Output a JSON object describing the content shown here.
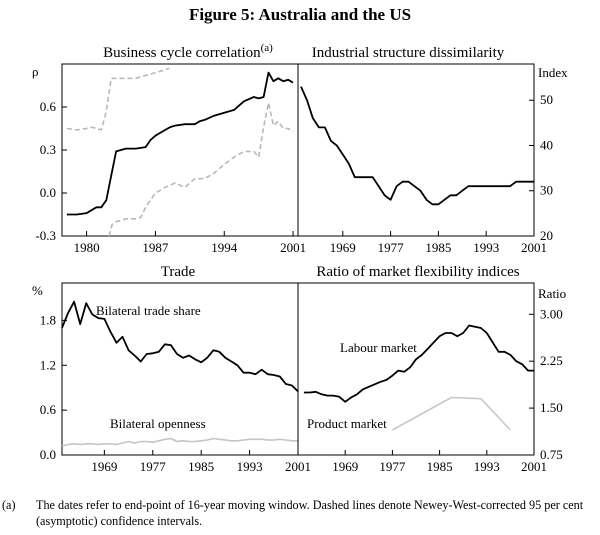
{
  "figure": {
    "title": "Figure 5: Australia and the US",
    "footnote_label": "(a)",
    "footnote_text": "The dates refer to end-point of 16-year moving window. Dashed lines denote Newey-West-corrected 95 per cent (asymptotic) confidence intervals."
  },
  "chart_data": [
    {
      "type": "line",
      "title": "Business cycle correlation",
      "title_superscript": "(a)",
      "ylabel": "ρ",
      "ylim": [
        -0.3,
        0.9
      ],
      "yticks": [
        -0.3,
        0.0,
        0.3,
        0.6
      ],
      "ytick_labels": [
        "-0.3",
        "0.0",
        "0.3",
        "0.6"
      ],
      "xlim": [
        1977.5,
        2001.5
      ],
      "xticks": [
        1980,
        1987,
        1994,
        2001
      ],
      "xtick_labels": [
        "1980",
        "1987",
        "1994",
        "2001"
      ],
      "series": [
        {
          "role": "estimate",
          "color": "#000000",
          "style": "solid",
          "x": [
            1978,
            1979,
            1980,
            1980.5,
            1981,
            1981.5,
            1982,
            1982.5,
            1983,
            1984,
            1985,
            1986,
            1986.5,
            1987,
            1988,
            1988.5,
            1989,
            1990,
            1991,
            1991.5,
            1992,
            1993,
            1994,
            1995,
            1996,
            1997,
            1997.5,
            1998,
            1998.5,
            1999,
            1999.5,
            2000,
            2000.5,
            2001
          ],
          "y": [
            -0.15,
            -0.15,
            -0.14,
            -0.12,
            -0.1,
            -0.1,
            -0.05,
            0.12,
            0.29,
            0.31,
            0.31,
            0.32,
            0.37,
            0.4,
            0.44,
            0.46,
            0.47,
            0.48,
            0.48,
            0.5,
            0.51,
            0.54,
            0.56,
            0.58,
            0.64,
            0.67,
            0.66,
            0.67,
            0.84,
            0.78,
            0.8,
            0.78,
            0.79,
            0.77
          ]
        },
        {
          "role": "upper 95% bound",
          "color": "#b8b8b8",
          "style": "dashed",
          "x": [
            1978,
            1979,
            1980,
            1980.5,
            1981,
            1981.5,
            1982,
            1982.5,
            1983,
            1984,
            1985,
            1986,
            1987,
            1988,
            1988.4
          ],
          "y": [
            0.45,
            0.44,
            0.45,
            0.46,
            0.45,
            0.44,
            0.57,
            0.8,
            0.8,
            0.8,
            0.8,
            0.82,
            0.84,
            0.86,
            0.87
          ]
        },
        {
          "role": "lower 95% bound",
          "color": "#b8b8b8",
          "style": "dashed",
          "x": [
            1982.3,
            1982.6,
            1983,
            1984,
            1985,
            1985.5,
            1986,
            1987,
            1988,
            1989,
            1990,
            1991,
            1992,
            1993,
            1994,
            1995,
            1996,
            1997,
            1997.5,
            1998,
            1998.5,
            1999,
            1999.5,
            2000,
            2000.5,
            2001
          ],
          "y": [
            -0.3,
            -0.22,
            -0.2,
            -0.18,
            -0.18,
            -0.17,
            -0.1,
            0.0,
            0.04,
            0.07,
            0.04,
            0.1,
            0.1,
            0.14,
            0.2,
            0.25,
            0.29,
            0.29,
            0.25,
            0.46,
            0.63,
            0.47,
            0.5,
            0.45,
            0.45,
            0.43
          ]
        }
      ]
    },
    {
      "type": "line",
      "title": "Industrial structure dissimilarity",
      "ylabel": "Index",
      "ylim": [
        20,
        58
      ],
      "yticks": [
        20,
        30,
        40,
        50
      ],
      "ytick_labels": [
        "20",
        "30",
        "40",
        "50"
      ],
      "xlim": [
        1961.5,
        2001
      ],
      "xticks": [
        1969,
        1977,
        1985,
        1993,
        2001
      ],
      "xtick_labels": [
        "1969",
        "1977",
        "1985",
        "1993",
        "2001"
      ],
      "series": [
        {
          "role": "index",
          "color": "#000000",
          "style": "solid",
          "x": [
            1962,
            1963,
            1964,
            1965,
            1966,
            1967,
            1968,
            1969,
            1970,
            1971,
            1972,
            1973,
            1974,
            1975,
            1976,
            1977,
            1978,
            1979,
            1980,
            1981,
            1982,
            1983,
            1984,
            1985,
            1986,
            1987,
            1988,
            1989,
            1990,
            1991,
            1992,
            1993,
            1994,
            1995,
            1996,
            1997,
            1998,
            1999,
            2000,
            2001
          ],
          "y": [
            53,
            50,
            46,
            44,
            44,
            41,
            40,
            38,
            36,
            33,
            33,
            33,
            33,
            31,
            29,
            28,
            31,
            32,
            32,
            31,
            30,
            28,
            27,
            27,
            28,
            29,
            29,
            30,
            31,
            31,
            31,
            31,
            31,
            31,
            31,
            31,
            32,
            32,
            32,
            32
          ]
        }
      ]
    },
    {
      "type": "line",
      "title": "Trade",
      "ylabel": "%",
      "ylim": [
        0,
        2.3
      ],
      "yticks": [
        0.0,
        0.6,
        1.2,
        1.8
      ],
      "ytick_labels": [
        "0.0",
        "0.6",
        "1.2",
        "1.8"
      ],
      "xlim": [
        1962,
        2001
      ],
      "xticks": [
        1969,
        1977,
        1985,
        1993,
        2001
      ],
      "xtick_labels": [
        "1969",
        "1977",
        "1985",
        "1993",
        "2001"
      ],
      "series": [
        {
          "name": "Bilateral trade share",
          "color": "#000000",
          "style": "solid",
          "x": [
            1962,
            1963,
            1964,
            1965,
            1966,
            1967,
            1968,
            1969,
            1970,
            1971,
            1972,
            1973,
            1974,
            1975,
            1976,
            1977,
            1978,
            1979,
            1980,
            1981,
            1982,
            1983,
            1984,
            1985,
            1986,
            1987,
            1988,
            1989,
            1990,
            1991,
            1992,
            1993,
            1994,
            1995,
            1996,
            1997,
            1998,
            1999,
            2000,
            2001
          ],
          "y": [
            1.7,
            1.9,
            2.05,
            1.75,
            2.03,
            1.88,
            1.83,
            1.82,
            1.65,
            1.5,
            1.58,
            1.4,
            1.33,
            1.25,
            1.35,
            1.36,
            1.38,
            1.48,
            1.47,
            1.35,
            1.3,
            1.33,
            1.28,
            1.24,
            1.3,
            1.4,
            1.38,
            1.3,
            1.25,
            1.2,
            1.1,
            1.1,
            1.08,
            1.14,
            1.08,
            1.07,
            1.05,
            0.95,
            0.93,
            0.85
          ]
        },
        {
          "name": "Bilateral openness",
          "color": "#c4c4c4",
          "style": "solid",
          "x": [
            1962,
            1963,
            1964,
            1965,
            1966,
            1967,
            1968,
            1969,
            1970,
            1971,
            1972,
            1973,
            1974,
            1975,
            1976,
            1977,
            1978,
            1979,
            1980,
            1981,
            1982,
            1983,
            1984,
            1985,
            1986,
            1987,
            1988,
            1989,
            1990,
            1991,
            1992,
            1993,
            1994,
            1995,
            1996,
            1997,
            1998,
            1999,
            2000,
            2001
          ],
          "y": [
            0.12,
            0.14,
            0.15,
            0.14,
            0.15,
            0.15,
            0.14,
            0.15,
            0.15,
            0.14,
            0.16,
            0.18,
            0.16,
            0.18,
            0.18,
            0.17,
            0.19,
            0.21,
            0.22,
            0.18,
            0.19,
            0.18,
            0.18,
            0.19,
            0.2,
            0.22,
            0.21,
            0.2,
            0.19,
            0.19,
            0.2,
            0.21,
            0.21,
            0.21,
            0.2,
            0.2,
            0.21,
            0.2,
            0.19,
            0.19
          ]
        }
      ]
    },
    {
      "type": "line",
      "title": "Ratio of market flexibility indices",
      "ylabel": "Ratio",
      "ylim": [
        0.75,
        3.5
      ],
      "yticks": [
        0.75,
        1.5,
        2.25,
        3.0
      ],
      "ytick_labels": [
        "0.75",
        "1.50",
        "2.25",
        "3.00"
      ],
      "xlim": [
        1961,
        2001
      ],
      "xticks": [
        1969,
        1977,
        1985,
        1993,
        2001
      ],
      "xtick_labels": [
        "1969",
        "1977",
        "1985",
        "1993",
        "2001"
      ],
      "series": [
        {
          "name": "Labour market",
          "color": "#000000",
          "style": "solid",
          "x": [
            1962,
            1963,
            1964,
            1965,
            1966,
            1967,
            1968,
            1969,
            1970,
            1971,
            1972,
            1973,
            1974,
            1975,
            1976,
            1977,
            1978,
            1979,
            1980,
            1981,
            1982,
            1983,
            1984,
            1985,
            1986,
            1987,
            1988,
            1989,
            1990,
            1991,
            1992,
            1993,
            1994,
            1995,
            1996,
            1997,
            1998,
            1999,
            2000,
            2001
          ],
          "y": [
            1.75,
            1.75,
            1.76,
            1.72,
            1.7,
            1.7,
            1.68,
            1.6,
            1.67,
            1.72,
            1.8,
            1.84,
            1.88,
            1.92,
            1.95,
            2.02,
            2.1,
            2.08,
            2.15,
            2.28,
            2.35,
            2.45,
            2.55,
            2.65,
            2.7,
            2.7,
            2.65,
            2.7,
            2.82,
            2.8,
            2.78,
            2.7,
            2.55,
            2.4,
            2.4,
            2.35,
            2.25,
            2.2,
            2.1,
            2.1
          ]
        },
        {
          "name": "Product market",
          "color": "#c8c8c8",
          "style": "solid",
          "x": [
            1977,
            1987,
            1992,
            1997
          ],
          "y": [
            1.15,
            1.67,
            1.65,
            1.15
          ]
        }
      ]
    }
  ],
  "annotations": {
    "trade_share_label": "Bilateral trade share",
    "openness_label": "Bilateral openness",
    "labour_label": "Labour market",
    "product_label": "Product market"
  }
}
